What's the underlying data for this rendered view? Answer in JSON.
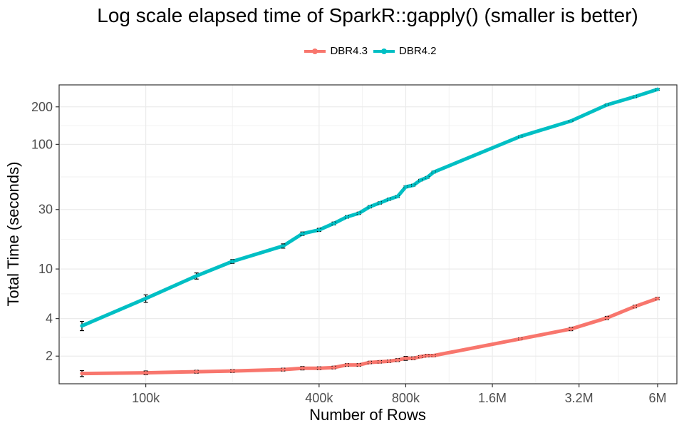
{
  "chart_data": {
    "type": "line",
    "title": "Log scale elapsed time of SparkR::gapply() (smaller is better)",
    "xlabel": "Number of Rows",
    "ylabel": "Total Time (seconds)",
    "x_scale": "log",
    "y_scale": "log",
    "xlim": [
      50000,
      7000000
    ],
    "ylim": [
      1.2,
      300
    ],
    "grid": true,
    "legend_position": "top",
    "x_ticks": [
      {
        "value": 100000,
        "label": "100k"
      },
      {
        "value": 400000,
        "label": "400k"
      },
      {
        "value": 800000,
        "label": "800k"
      },
      {
        "value": 1600000,
        "label": "1.6M"
      },
      {
        "value": 3200000,
        "label": "3.2M"
      },
      {
        "value": 6000000,
        "label": "6M"
      }
    ],
    "y_ticks": [
      {
        "value": 2,
        "label": "2"
      },
      {
        "value": 4,
        "label": "4"
      },
      {
        "value": 10,
        "label": "10"
      },
      {
        "value": 30,
        "label": "30"
      },
      {
        "value": 100,
        "label": "100"
      },
      {
        "value": 200,
        "label": "200"
      }
    ],
    "x": [
      60000,
      100000,
      150000,
      200000,
      300000,
      350000,
      400000,
      450000,
      500000,
      550000,
      600000,
      650000,
      700000,
      750000,
      800000,
      850000,
      900000,
      950000,
      1000000,
      2000000,
      3000000,
      4000000,
      5000000,
      6000000
    ],
    "series": [
      {
        "name": "DBR4.3",
        "color": "#f8766d",
        "values": [
          1.45,
          1.47,
          1.5,
          1.52,
          1.56,
          1.6,
          1.6,
          1.62,
          1.7,
          1.7,
          1.78,
          1.8,
          1.82,
          1.86,
          1.92,
          1.92,
          1.98,
          2.02,
          2.02,
          2.75,
          3.3,
          4.05,
          5.0,
          5.8
        ],
        "errors": [
          0.08,
          0.05,
          0.04,
          0.04,
          0.04,
          0.05,
          0.04,
          0.04,
          0.04,
          0.04,
          0.04,
          0.04,
          0.04,
          0.05,
          0.07,
          0.05,
          0.04,
          0.05,
          0.04,
          0.05,
          0.1,
          0.12,
          0.12,
          0.14
        ]
      },
      {
        "name": "DBR4.2",
        "color": "#00bfc4",
        "values": [
          3.5,
          5.8,
          8.8,
          11.5,
          15.3,
          19.2,
          20.6,
          23.2,
          26.2,
          28.0,
          31.6,
          33.9,
          36.3,
          38.2,
          45.6,
          47.0,
          51.6,
          54.3,
          59.9,
          115.7,
          154.1,
          207.4,
          241.3,
          276.0
        ],
        "errors": [
          0.3,
          0.4,
          0.5,
          0.4,
          0.6,
          0.6,
          0.6,
          0.6,
          0.6,
          0.6,
          0.7,
          0.7,
          0.7,
          0.7,
          0.8,
          0.8,
          0.8,
          0.9,
          1.0,
          1.5,
          2.0,
          3.0,
          4.0,
          4.0
        ]
      }
    ]
  }
}
